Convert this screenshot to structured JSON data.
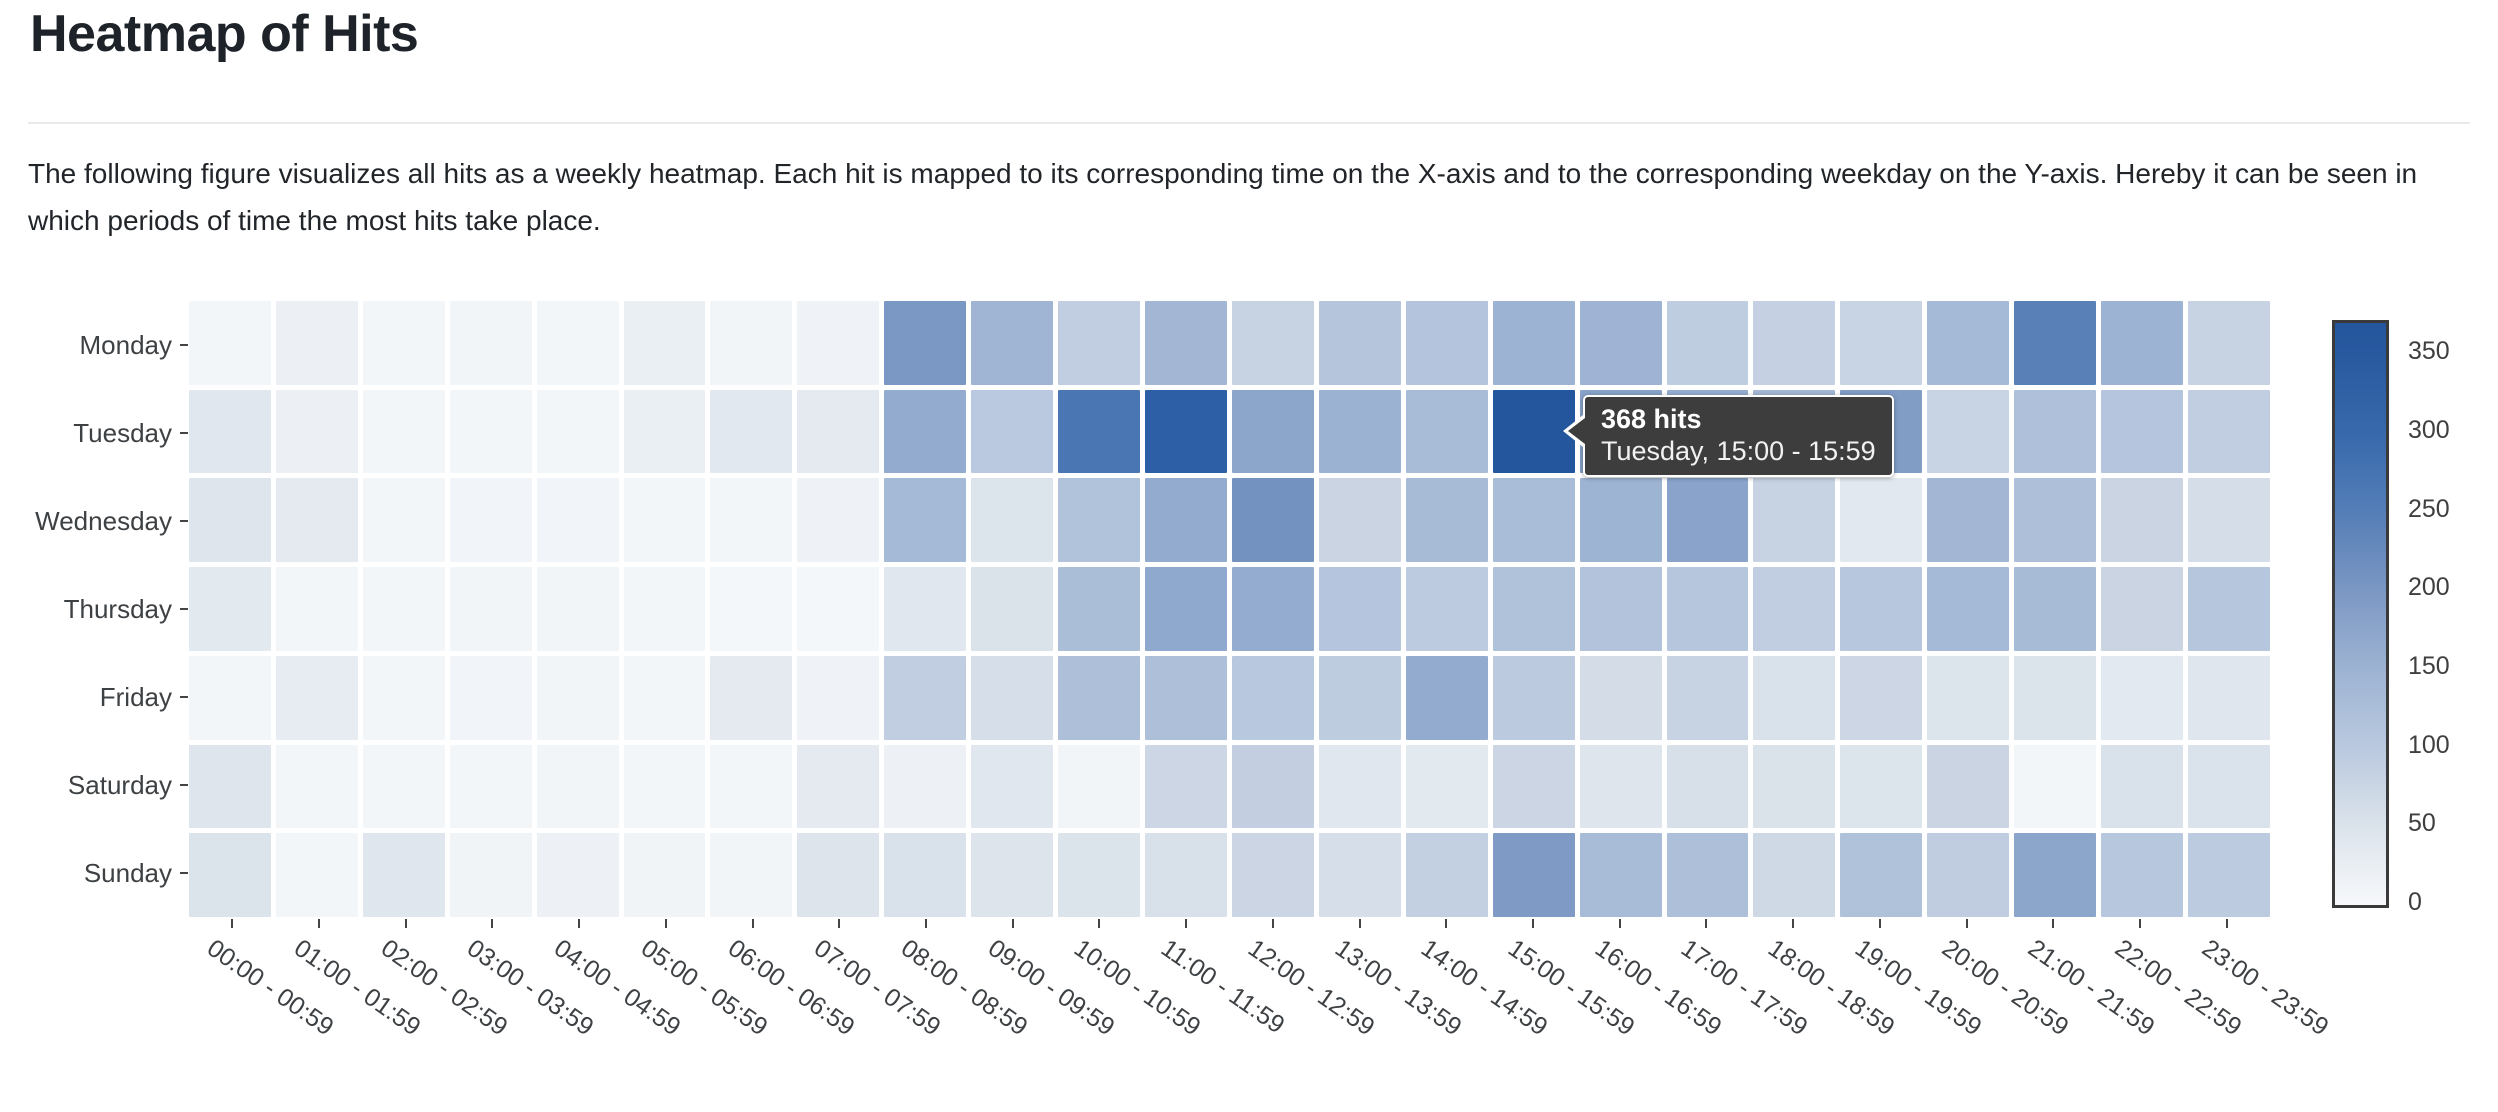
{
  "page": {
    "title": "Heatmap of Hits",
    "description": "The following figure visualizes all hits as a weekly heatmap. Each hit is mapped to its corresponding time on the X-axis and to the corresponding weekday on the Y-axis. Hereby it can be seen in which periods of time the most hits take place."
  },
  "tooltip": {
    "hits_label": "368 hits",
    "detail": "Tuesday, 15:00 - 15:59"
  },
  "chart_data": {
    "type": "heatmap",
    "title": "Heatmap of Hits",
    "value_label": "hits",
    "x_categories": [
      "00:00 - 00:59",
      "01:00 - 01:59",
      "02:00 - 02:59",
      "03:00 - 03:59",
      "04:00 - 04:59",
      "05:00 - 05:59",
      "06:00 - 06:59",
      "07:00 - 07:59",
      "08:00 - 08:59",
      "09:00 - 09:59",
      "10:00 - 10:59",
      "11:00 - 11:59",
      "12:00 - 12:59",
      "13:00 - 13:59",
      "14:00 - 14:59",
      "15:00 - 15:59",
      "16:00 - 16:59",
      "17:00 - 17:59",
      "18:00 - 18:59",
      "19:00 - 19:59",
      "20:00 - 20:59",
      "21:00 - 21:59",
      "22:00 - 22:59",
      "23:00 - 23:59"
    ],
    "y_categories": [
      "Monday",
      "Tuesday",
      "Wednesday",
      "Thursday",
      "Friday",
      "Saturday",
      "Sunday"
    ],
    "values": [
      [
        8,
        22,
        8,
        10,
        8,
        25,
        10,
        15,
        200,
        145,
        90,
        140,
        82,
        110,
        112,
        150,
        147,
        93,
        85,
        80,
        135,
        240,
        150,
        82
      ],
      [
        42,
        22,
        8,
        8,
        8,
        25,
        40,
        35,
        165,
        100,
        270,
        320,
        175,
        152,
        130,
        368,
        180,
        160,
        140,
        190,
        80,
        118,
        108,
        90
      ],
      [
        45,
        35,
        8,
        12,
        12,
        8,
        8,
        18,
        135,
        48,
        115,
        165,
        210,
        78,
        132,
        127,
        148,
        178,
        82,
        40,
        140,
        122,
        78,
        60
      ],
      [
        38,
        8,
        8,
        10,
        10,
        8,
        6,
        6,
        42,
        52,
        125,
        170,
        162,
        108,
        96,
        117,
        113,
        106,
        90,
        105,
        135,
        132,
        78,
        106
      ],
      [
        8,
        32,
        8,
        12,
        10,
        8,
        35,
        15,
        90,
        58,
        122,
        120,
        103,
        95,
        165,
        98,
        63,
        82,
        53,
        75,
        48,
        50,
        37,
        43
      ],
      [
        45,
        8,
        7,
        8,
        10,
        8,
        7,
        35,
        20,
        42,
        10,
        75,
        88,
        42,
        38,
        77,
        45,
        57,
        52,
        48,
        78,
        8,
        53,
        51
      ],
      [
        50,
        7,
        43,
        13,
        20,
        13,
        9,
        47,
        53,
        47,
        50,
        55,
        77,
        58,
        87,
        195,
        130,
        120,
        70,
        117,
        92,
        175,
        105,
        97
      ]
    ],
    "highlighted_cell": {
      "day": "Tuesday",
      "time": "15:00 - 15:59",
      "value": 368
    },
    "colorbar": {
      "ticks": [
        0,
        50,
        100,
        150,
        200,
        250,
        300,
        350
      ],
      "min": 0,
      "max": 370,
      "min_color": "#f7f9fb",
      "max_color": "#24569e"
    },
    "legend_position": "right",
    "grid": false
  }
}
